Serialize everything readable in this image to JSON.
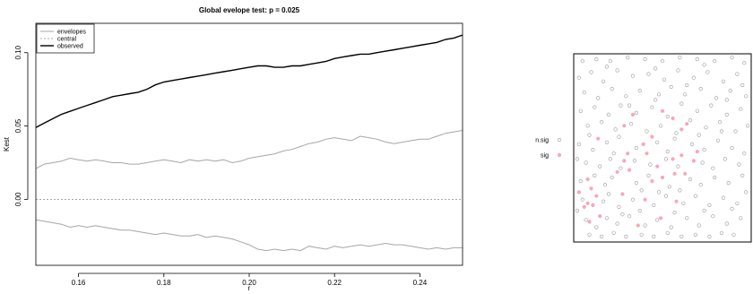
{
  "chart_data": [
    {
      "type": "line",
      "title": "Global evelope test: p =  0.025",
      "xlabel": "r",
      "ylabel": "Kest",
      "xlim": [
        0.15,
        0.25
      ],
      "ylim": [
        -0.045,
        0.12
      ],
      "xticks": [
        0.16,
        0.18,
        0.2,
        0.22,
        0.24
      ],
      "xtick_labels": [
        "0.16",
        "0.18",
        "0.20",
        "0.22",
        "0.24"
      ],
      "yticks": [
        0.0,
        0.05,
        0.1
      ],
      "ytick_labels": [
        "0.00",
        "0.05",
        "0.10"
      ],
      "grid": false,
      "legend_position": "top-left",
      "legend": [
        "envelopes",
        "central",
        "observed"
      ],
      "x": [
        0.15,
        0.152,
        0.154,
        0.156,
        0.158,
        0.16,
        0.162,
        0.164,
        0.166,
        0.168,
        0.17,
        0.172,
        0.174,
        0.176,
        0.178,
        0.18,
        0.182,
        0.184,
        0.186,
        0.188,
        0.19,
        0.192,
        0.194,
        0.196,
        0.198,
        0.2,
        0.202,
        0.204,
        0.206,
        0.208,
        0.21,
        0.212,
        0.214,
        0.216,
        0.218,
        0.22,
        0.222,
        0.224,
        0.226,
        0.228,
        0.23,
        0.232,
        0.234,
        0.236,
        0.238,
        0.24,
        0.242,
        0.244,
        0.246,
        0.248,
        0.25
      ],
      "series": [
        {
          "role": "observed",
          "style": "solid-black",
          "values": [
            0.049,
            0.052,
            0.055,
            0.058,
            0.06,
            0.062,
            0.064,
            0.066,
            0.068,
            0.07,
            0.071,
            0.072,
            0.073,
            0.075,
            0.078,
            0.08,
            0.081,
            0.082,
            0.083,
            0.084,
            0.085,
            0.086,
            0.087,
            0.088,
            0.089,
            0.09,
            0.091,
            0.091,
            0.09,
            0.09,
            0.091,
            0.091,
            0.092,
            0.093,
            0.094,
            0.096,
            0.097,
            0.098,
            0.099,
            0.099,
            0.1,
            0.101,
            0.102,
            0.103,
            0.104,
            0.105,
            0.106,
            0.107,
            0.109,
            0.11,
            0.112
          ]
        },
        {
          "role": "envelope-upper",
          "style": "solid-grey",
          "values": [
            0.021,
            0.024,
            0.025,
            0.026,
            0.028,
            0.027,
            0.026,
            0.027,
            0.026,
            0.025,
            0.025,
            0.024,
            0.024,
            0.025,
            0.026,
            0.027,
            0.026,
            0.025,
            0.027,
            0.026,
            0.027,
            0.026,
            0.027,
            0.025,
            0.026,
            0.028,
            0.029,
            0.03,
            0.031,
            0.033,
            0.034,
            0.036,
            0.038,
            0.039,
            0.041,
            0.042,
            0.041,
            0.04,
            0.043,
            0.042,
            0.041,
            0.039,
            0.038,
            0.039,
            0.04,
            0.041,
            0.041,
            0.043,
            0.045,
            0.046,
            0.047
          ]
        },
        {
          "role": "central",
          "style": "dashed-grey",
          "values": [
            0.0,
            0.0,
            0.0,
            0.0,
            0.0,
            0.0,
            0.0,
            0.0,
            0.0,
            0.0,
            0.0,
            0.0,
            0.0,
            0.0,
            0.0,
            0.0,
            0.0,
            0.0,
            0.0,
            0.0,
            0.0,
            0.0,
            0.0,
            0.0,
            0.0,
            0.0,
            0.0,
            0.0,
            0.0,
            0.0,
            0.0,
            0.0,
            0.0,
            0.0,
            0.0,
            0.0,
            0.0,
            0.0,
            0.0,
            0.0,
            0.0,
            0.0,
            0.0,
            0.0,
            0.0,
            0.0,
            0.0,
            0.0,
            0.0,
            0.0,
            0.0
          ]
        },
        {
          "role": "envelope-lower",
          "style": "solid-grey",
          "values": [
            -0.014,
            -0.015,
            -0.016,
            -0.017,
            -0.019,
            -0.018,
            -0.019,
            -0.018,
            -0.019,
            -0.02,
            -0.021,
            -0.021,
            -0.022,
            -0.023,
            -0.024,
            -0.023,
            -0.024,
            -0.025,
            -0.025,
            -0.024,
            -0.026,
            -0.025,
            -0.026,
            -0.027,
            -0.029,
            -0.031,
            -0.034,
            -0.035,
            -0.034,
            -0.035,
            -0.034,
            -0.035,
            -0.032,
            -0.033,
            -0.034,
            -0.032,
            -0.033,
            -0.032,
            -0.031,
            -0.032,
            -0.031,
            -0.03,
            -0.031,
            -0.031,
            -0.032,
            -0.033,
            -0.034,
            -0.033,
            -0.034,
            -0.033,
            -0.033
          ]
        }
      ],
      "colors": {
        "observed": "#000000",
        "envelope": "#a6a6a6",
        "central": "#8c8c8c"
      }
    },
    {
      "type": "scatter",
      "legend": [
        "n.sig",
        "sig"
      ],
      "legend_position": "left",
      "colors": {
        "n.sig": "#9a9a9a",
        "sig": "#f4a9b8"
      },
      "xlim": [
        0,
        1
      ],
      "ylim": [
        0,
        1
      ],
      "sig_points": [
        [
          0.02,
          0.26
        ],
        [
          0.05,
          0.18
        ],
        [
          0.07,
          0.33
        ],
        [
          0.07,
          0.2
        ],
        [
          0.08,
          0.1
        ],
        [
          0.09,
          0.28
        ],
        [
          0.1,
          0.19
        ],
        [
          0.13,
          0.55
        ],
        [
          0.14,
          0.13
        ],
        [
          0.12,
          0.24
        ],
        [
          0.24,
          0.37
        ],
        [
          0.27,
          0.25
        ],
        [
          0.28,
          0.43
        ],
        [
          0.3,
          0.47
        ],
        [
          0.31,
          0.38
        ],
        [
          0.28,
          0.62
        ],
        [
          0.33,
          0.68
        ],
        [
          0.39,
          0.52
        ],
        [
          0.41,
          0.47
        ],
        [
          0.44,
          0.56
        ],
        [
          0.4,
          0.22
        ],
        [
          0.44,
          0.32
        ],
        [
          0.47,
          0.4
        ],
        [
          0.5,
          0.34
        ],
        [
          0.5,
          0.7
        ],
        [
          0.56,
          0.66
        ],
        [
          0.61,
          0.6
        ],
        [
          0.64,
          0.63
        ],
        [
          0.63,
          0.36
        ],
        [
          0.57,
          0.36
        ],
        [
          0.61,
          0.46
        ],
        [
          0.36,
          0.08
        ],
        [
          0.49,
          0.12
        ],
        [
          0.56,
          0.44
        ],
        [
          0.58,
          0.21
        ],
        [
          0.68,
          0.43
        ],
        [
          0.7,
          0.48
        ]
      ],
      "nsig_points": [
        [
          0.04,
          0.97
        ],
        [
          0.12,
          0.98
        ],
        [
          0.2,
          0.97
        ],
        [
          0.3,
          0.99
        ],
        [
          0.4,
          0.98
        ],
        [
          0.5,
          0.97
        ],
        [
          0.6,
          0.99
        ],
        [
          0.7,
          0.98
        ],
        [
          0.8,
          0.97
        ],
        [
          0.9,
          0.99
        ],
        [
          0.97,
          0.96
        ],
        [
          0.02,
          0.88
        ],
        [
          0.09,
          0.91
        ],
        [
          0.16,
          0.86
        ],
        [
          0.24,
          0.92
        ],
        [
          0.33,
          0.89
        ],
        [
          0.42,
          0.9
        ],
        [
          0.51,
          0.87
        ],
        [
          0.59,
          0.92
        ],
        [
          0.68,
          0.88
        ],
        [
          0.76,
          0.91
        ],
        [
          0.85,
          0.86
        ],
        [
          0.93,
          0.9
        ],
        [
          0.05,
          0.8
        ],
        [
          0.13,
          0.77
        ],
        [
          0.21,
          0.82
        ],
        [
          0.29,
          0.78
        ],
        [
          0.37,
          0.81
        ],
        [
          0.46,
          0.76
        ],
        [
          0.55,
          0.83
        ],
        [
          0.63,
          0.79
        ],
        [
          0.72,
          0.82
        ],
        [
          0.81,
          0.77
        ],
        [
          0.89,
          0.81
        ],
        [
          0.98,
          0.78
        ],
        [
          0.03,
          0.7
        ],
        [
          0.11,
          0.72
        ],
        [
          0.19,
          0.68
        ],
        [
          0.26,
          0.73
        ],
        [
          0.35,
          0.69
        ],
        [
          0.44,
          0.72
        ],
        [
          0.53,
          0.67
        ],
        [
          0.61,
          0.74
        ],
        [
          0.7,
          0.7
        ],
        [
          0.78,
          0.73
        ],
        [
          0.87,
          0.68
        ],
        [
          0.95,
          0.71
        ],
        [
          0.07,
          0.62
        ],
        [
          0.15,
          0.64
        ],
        [
          0.23,
          0.6
        ],
        [
          0.32,
          0.63
        ],
        [
          0.41,
          0.59
        ],
        [
          0.49,
          0.62
        ],
        [
          0.58,
          0.58
        ],
        [
          0.66,
          0.65
        ],
        [
          0.75,
          0.61
        ],
        [
          0.83,
          0.64
        ],
        [
          0.92,
          0.59
        ],
        [
          0.99,
          0.62
        ],
        [
          0.02,
          0.52
        ],
        [
          0.1,
          0.49
        ],
        [
          0.18,
          0.53
        ],
        [
          0.22,
          0.47
        ],
        [
          0.35,
          0.5
        ],
        [
          0.47,
          0.53
        ],
        [
          0.53,
          0.48
        ],
        [
          0.67,
          0.52
        ],
        [
          0.74,
          0.49
        ],
        [
          0.82,
          0.54
        ],
        [
          0.9,
          0.5
        ],
        [
          0.97,
          0.47
        ],
        [
          0.06,
          0.42
        ],
        [
          0.14,
          0.4
        ],
        [
          0.2,
          0.44
        ],
        [
          0.26,
          0.39
        ],
        [
          0.34,
          0.43
        ],
        [
          0.43,
          0.41
        ],
        [
          0.52,
          0.44
        ],
        [
          0.59,
          0.4
        ],
        [
          0.73,
          0.42
        ],
        [
          0.79,
          0.39
        ],
        [
          0.86,
          0.44
        ],
        [
          0.94,
          0.41
        ],
        [
          0.03,
          0.32
        ],
        [
          0.11,
          0.35
        ],
        [
          0.17,
          0.3
        ],
        [
          0.21,
          0.34
        ],
        [
          0.35,
          0.31
        ],
        [
          0.42,
          0.35
        ],
        [
          0.54,
          0.29
        ],
        [
          0.66,
          0.33
        ],
        [
          0.72,
          0.3
        ],
        [
          0.8,
          0.34
        ],
        [
          0.88,
          0.31
        ],
        [
          0.96,
          0.35
        ],
        [
          0.04,
          0.22
        ],
        [
          0.16,
          0.21
        ],
        [
          0.19,
          0.25
        ],
        [
          0.25,
          0.18
        ],
        [
          0.33,
          0.22
        ],
        [
          0.45,
          0.19
        ],
        [
          0.52,
          0.24
        ],
        [
          0.62,
          0.2
        ],
        [
          0.69,
          0.24
        ],
        [
          0.77,
          0.19
        ],
        [
          0.85,
          0.23
        ],
        [
          0.93,
          0.2
        ],
        [
          0.06,
          0.11
        ],
        [
          0.12,
          0.07
        ],
        [
          0.18,
          0.12
        ],
        [
          0.24,
          0.09
        ],
        [
          0.31,
          0.13
        ],
        [
          0.4,
          0.08
        ],
        [
          0.47,
          0.11
        ],
        [
          0.55,
          0.07
        ],
        [
          0.64,
          0.12
        ],
        [
          0.71,
          0.08
        ],
        [
          0.79,
          0.13
        ],
        [
          0.87,
          0.09
        ],
        [
          0.95,
          0.12
        ],
        [
          0.08,
          0.03
        ],
        [
          0.15,
          0.02
        ],
        [
          0.22,
          0.04
        ],
        [
          0.29,
          0.02
        ],
        [
          0.38,
          0.03
        ],
        [
          0.45,
          0.02
        ],
        [
          0.53,
          0.04
        ],
        [
          0.61,
          0.02
        ],
        [
          0.69,
          0.03
        ],
        [
          0.77,
          0.02
        ],
        [
          0.84,
          0.04
        ],
        [
          0.91,
          0.03
        ],
        [
          0.01,
          0.16
        ],
        [
          0.27,
          0.14
        ],
        [
          0.37,
          0.16
        ],
        [
          0.57,
          0.15
        ],
        [
          0.74,
          0.16
        ],
        [
          0.9,
          0.17
        ],
        [
          0.98,
          0.26
        ],
        [
          0.01,
          0.44
        ],
        [
          0.08,
          0.57
        ],
        [
          0.25,
          0.56
        ],
        [
          0.57,
          0.55
        ],
        [
          0.71,
          0.57
        ],
        [
          0.84,
          0.59
        ],
        [
          0.31,
          0.73
        ],
        [
          0.48,
          0.79
        ],
        [
          0.64,
          0.84
        ],
        [
          0.87,
          0.76
        ],
        [
          0.18,
          0.94
        ],
        [
          0.46,
          0.93
        ],
        [
          0.74,
          0.95
        ],
        [
          0.96,
          0.84
        ],
        [
          0.38,
          0.27
        ],
        [
          0.48,
          0.26
        ],
        [
          0.6,
          0.27
        ]
      ]
    }
  ]
}
